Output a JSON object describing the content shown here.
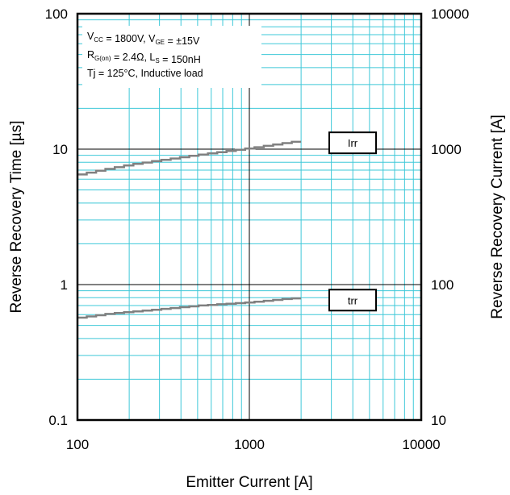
{
  "chart_data": {
    "type": "line",
    "x_scale": "log",
    "y_scale": "log",
    "xlabel": "Emitter Current [A]",
    "ylabel": "Reverse Recovery Time [µs]",
    "y2label": "Reverse Recovery Current [A]",
    "xlim": [
      100,
      10000
    ],
    "ylim": [
      0.1,
      100
    ],
    "y2lim": [
      10,
      10000
    ],
    "x_ticks": [
      "100",
      "1000",
      "10000"
    ],
    "y_ticks": [
      "0.1",
      "1",
      "10",
      "100"
    ],
    "y2_ticks": [
      "10",
      "100",
      "1000",
      "10000"
    ],
    "grid": true,
    "grid_color": "#3ec8d8",
    "major_grid_color": "#000000",
    "line_color": "#808080",
    "annotations": [
      {
        "parts": [
          {
            "t": "V"
          },
          {
            "t": "CC",
            "sub": true
          },
          {
            "t": " = 1800V, V"
          },
          {
            "t": "GE",
            "sub": true
          },
          {
            "t": " = ±15V"
          }
        ]
      },
      {
        "parts": [
          {
            "t": "R"
          },
          {
            "t": "G(on)",
            "sub": true
          },
          {
            "t": " = 2.4Ω, L"
          },
          {
            "t": "S",
            "sub": true
          },
          {
            "t": " = 150nH"
          }
        ]
      },
      {
        "parts": [
          {
            "t": "Tj = 125°C, Inductive load"
          }
        ]
      }
    ],
    "series": [
      {
        "name": "Irr",
        "axis": "right",
        "x": [
          100,
          150,
          200,
          300,
          500,
          700,
          1000,
          1500,
          2000
        ],
        "values": [
          650,
          720,
          770,
          830,
          910,
          960,
          1020,
          1100,
          1160
        ]
      },
      {
        "name": "trr",
        "axis": "left",
        "x": [
          100,
          150,
          200,
          300,
          500,
          700,
          1000,
          1500,
          2000
        ],
        "values": [
          0.57,
          0.61,
          0.63,
          0.66,
          0.7,
          0.72,
          0.74,
          0.78,
          0.8
        ]
      }
    ]
  }
}
